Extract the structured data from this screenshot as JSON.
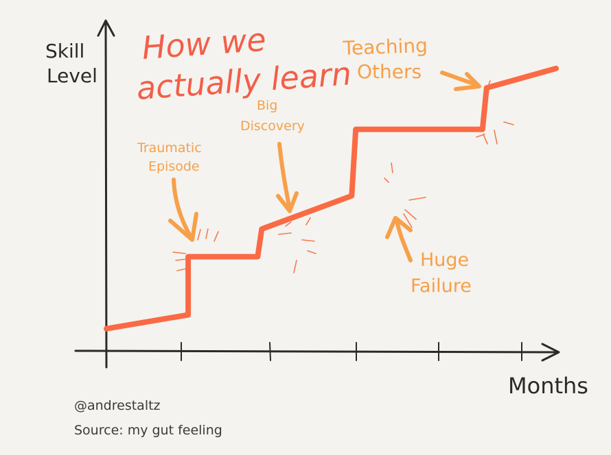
{
  "chart_data": {
    "type": "line",
    "title_lines": [
      "How we",
      "actually learn"
    ],
    "ylabel_lines": [
      "Skill",
      "Level"
    ],
    "xlabel": "Months",
    "xticks": [
      "",
      "",
      "",
      "",
      ""
    ],
    "grid": false,
    "xlim": [
      0,
      110
    ],
    "ylim": [
      0,
      100
    ],
    "series": [
      {
        "x": [
          0,
          20,
          20,
          37,
          38,
          60,
          61,
          92,
          93,
          110
        ],
        "y": [
          8,
          13,
          34,
          34,
          44,
          56,
          80,
          80,
          95,
          102
        ]
      }
    ],
    "annotations": [
      {
        "text_lines": [
          "Traumatic",
          "Episode"
        ],
        "x": 20,
        "y": 34
      },
      {
        "text_lines": [
          "Big",
          "Discovery"
        ],
        "x": 37.5,
        "y": 44
      },
      {
        "text_lines": [
          "Huge",
          "Failure"
        ],
        "x": 60.5,
        "y": 56
      },
      {
        "text_lines": [
          "Teaching",
          "Others"
        ],
        "x": 92.5,
        "y": 88
      }
    ]
  },
  "credits": {
    "handle": "@andrestaltz",
    "source": "Source: my gut feeling"
  },
  "colors": {
    "line": "#fa6a45",
    "annotation": "#f6a04a",
    "title": "#f35e48",
    "ink": "#2a2a2a",
    "background": "#f4f3ef"
  }
}
